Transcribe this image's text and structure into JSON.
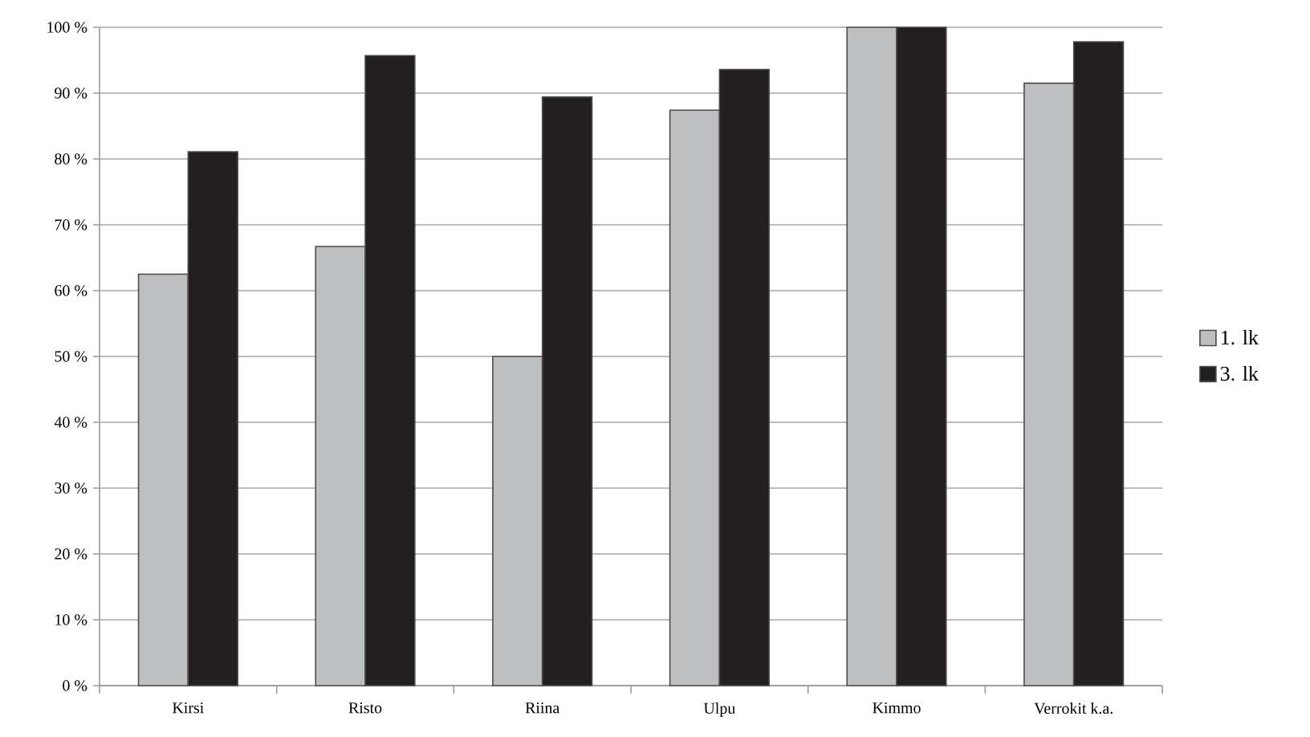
{
  "chart_data": {
    "type": "bar",
    "categories": [
      "Kirsi",
      "Risto",
      "Riina",
      "Ulpu",
      "Kimmo",
      "Verrokit k.a."
    ],
    "series": [
      {
        "name": "1. lk",
        "color": "#bebfc1",
        "values": [
          62.5,
          66.7,
          50,
          87.4,
          100,
          91.5
        ]
      },
      {
        "name": "3. lk",
        "color": "#231f20",
        "values": [
          81.1,
          95.7,
          89.4,
          93.6,
          100,
          97.8
        ]
      }
    ],
    "ylim": [
      0,
      100
    ],
    "yticks": [
      {
        "value": 0,
        "label": "0 %"
      },
      {
        "value": 10,
        "label": "10 %"
      },
      {
        "value": 20,
        "label": "20 %"
      },
      {
        "value": 30,
        "label": "30 %"
      },
      {
        "value": 40,
        "label": "40 %"
      },
      {
        "value": 50,
        "label": "50 %"
      },
      {
        "value": 60,
        "label": "60 %"
      },
      {
        "value": 70,
        "label": "70 %"
      },
      {
        "value": 80,
        "label": "80 %"
      },
      {
        "value": 90,
        "label": "90 %"
      },
      {
        "value": 100,
        "label": "100 %"
      }
    ],
    "grid": "y",
    "legend": "right"
  }
}
